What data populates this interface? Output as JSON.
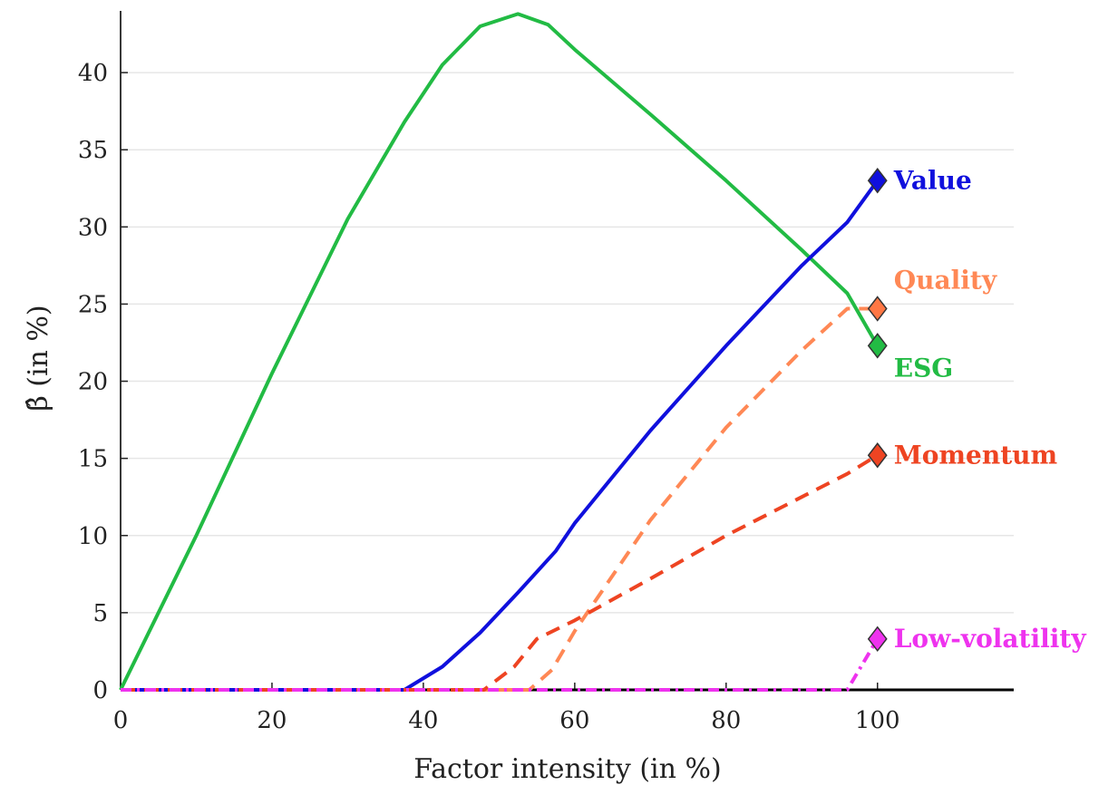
{
  "chart_data": {
    "type": "line",
    "title": "",
    "xlabel": "Factor intensity (in %)",
    "ylabel": "β̂ (in %)",
    "xlim": [
      0,
      118
    ],
    "ylim": [
      0,
      44
    ],
    "x_ticks": [
      0,
      20,
      40,
      60,
      80,
      100
    ],
    "y_ticks": [
      0,
      5,
      10,
      15,
      20,
      25,
      30,
      35,
      40
    ],
    "grid": "horizontal",
    "legend": "inline labels at series endpoints",
    "series": [
      {
        "name": "ESG",
        "color": "#22bb44",
        "style": "solid",
        "x": [
          0,
          10,
          20,
          30,
          37.5,
          42.5,
          47.5,
          52.5,
          56.5,
          60,
          70,
          80,
          90,
          96,
          100
        ],
        "y": [
          0,
          10,
          20.5,
          30.5,
          36.8,
          40.5,
          43,
          43.8,
          43.1,
          41.5,
          37.3,
          33,
          28.5,
          25.7,
          22.3
        ]
      },
      {
        "name": "Value",
        "color": "#1010dd",
        "style": "solid",
        "x": [
          0,
          37.5,
          42.5,
          47.5,
          52.5,
          57.5,
          60,
          70,
          80,
          90,
          96,
          100
        ],
        "y": [
          0,
          0,
          1.5,
          3.7,
          6.3,
          9,
          10.8,
          16.8,
          22.3,
          27.5,
          30.3,
          33
        ]
      },
      {
        "name": "Quality",
        "color": "#ff8855",
        "style": "dashed",
        "x": [
          0,
          54,
          57,
          60,
          70,
          80,
          90,
          96,
          100
        ],
        "y": [
          0,
          0,
          1.3,
          3.8,
          11,
          17,
          22,
          24.7,
          24.7
        ]
      },
      {
        "name": "Momentum",
        "color": "#ee4422",
        "style": "dashed",
        "x": [
          0,
          48,
          52,
          55,
          60,
          70,
          80,
          90,
          96,
          100
        ],
        "y": [
          0,
          0,
          1.5,
          3.3,
          4.5,
          7.2,
          10,
          12.5,
          14,
          15.2
        ]
      },
      {
        "name": "Low-volatility",
        "color": "#ee33ee",
        "style": "dashdot",
        "x": [
          0,
          96,
          100
        ],
        "y": [
          0,
          0,
          3.3
        ]
      }
    ]
  }
}
